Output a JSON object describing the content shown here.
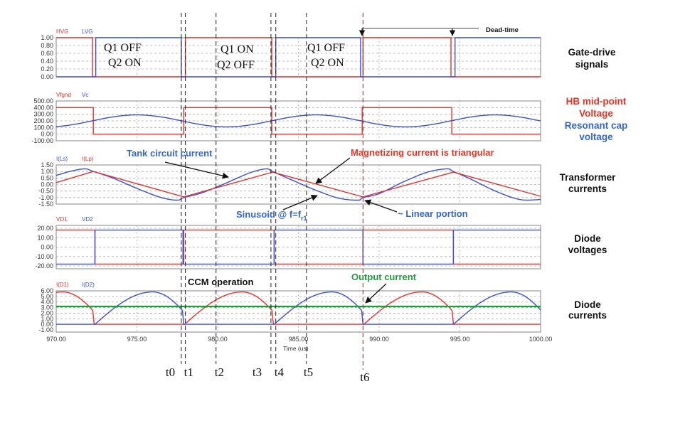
{
  "chart_data": {
    "type": "line",
    "title": "",
    "xlabel": "Time (us)",
    "xlim": [
      970,
      1000
    ],
    "xticks": [
      "970.00",
      "975.00",
      "980.00",
      "985.00",
      "990.00",
      "995.00",
      "1000.00"
    ],
    "grid": true,
    "colors": {
      "red": "#e8312a",
      "blue": "#3a4fd8",
      "green": "#1e9e3a",
      "annot_blue": "#3366dd",
      "annot_red": "#ee3322"
    },
    "panels": [
      {
        "id": "gate",
        "ylim": [
          0,
          1
        ],
        "yticks": [
          "1.00",
          "0.80",
          "0.60",
          "0.40",
          "0.20",
          "0.00"
        ],
        "side_label": [
          "Gate-drive",
          "signals"
        ],
        "series": [
          {
            "name": "HVG",
            "color": "red",
            "kind": "step",
            "high": 1,
            "low": 0,
            "high_intervals": [
              [
                970,
                972.25
              ],
              [
                978.0,
                983.35
              ],
              [
                989.0,
                994.45
              ]
            ]
          },
          {
            "name": "LVG",
            "color": "blue",
            "kind": "step",
            "high": 1,
            "low": 0,
            "high_intervals": [
              [
                972.45,
                977.75
              ],
              [
                983.6,
                988.85
              ],
              [
                994.7,
                1000
              ]
            ]
          }
        ]
      },
      {
        "id": "hb",
        "ylim": [
          -100,
          500
        ],
        "yticks": [
          "500.00",
          "400.00",
          "300.00",
          "200.00",
          "100.00",
          "0.00",
          "-100.00"
        ],
        "side_label_red": [
          "HB mid-point",
          "Voltage"
        ],
        "side_label_blue": [
          "Resonant cap",
          "voltage"
        ],
        "series": [
          {
            "name": "Vfgnd",
            "color": "red",
            "kind": "step",
            "high": 400,
            "low": 0,
            "high_intervals": [
              [
                970,
                972.3
              ],
              [
                977.9,
                983.35
              ],
              [
                988.95,
                994.5
              ]
            ]
          },
          {
            "name": "Vc",
            "color": "blue",
            "kind": "sinusoid",
            "offset": 200,
            "amplitude": 90,
            "period": 11.1,
            "peak_at": 975
          }
        ]
      },
      {
        "id": "currents",
        "ylim": [
          -1.5,
          1.5
        ],
        "yticks": [
          "1.50",
          "1.00",
          "0.50",
          "0.00",
          "-0.50",
          "-1.00",
          "-1.50"
        ],
        "side_label": [
          "Transformer",
          "currents"
        ],
        "series": [
          {
            "name": "I(Ls)",
            "color": "blue",
            "kind": "points",
            "smooth": true,
            "points": [
              [
                970,
                0.7
              ],
              [
                971,
                1.05
              ],
              [
                971.8,
                1.2
              ],
              [
                972.3,
                1.0
              ],
              [
                973.5,
                0.5
              ],
              [
                975,
                -0.3
              ],
              [
                976.5,
                -1.0
              ],
              [
                977.5,
                -1.2
              ],
              [
                977.9,
                -1.0
              ],
              [
                979,
                -0.65
              ],
              [
                980.5,
                0.1
              ],
              [
                982,
                0.9
              ],
              [
                983,
                1.2
              ],
              [
                983.4,
                1.0
              ],
              [
                984.5,
                0.4
              ],
              [
                986,
                -0.4
              ],
              [
                987.5,
                -1.05
              ],
              [
                988.7,
                -1.2
              ],
              [
                989.0,
                -1.0
              ],
              [
                990,
                -0.7
              ],
              [
                991.5,
                0.2
              ],
              [
                993,
                0.95
              ],
              [
                994.2,
                1.2
              ],
              [
                994.6,
                1.0
              ],
              [
                995.7,
                0.4
              ],
              [
                997.2,
                -0.5
              ],
              [
                998.7,
                -1.15
              ],
              [
                1000,
                -1.15
              ]
            ]
          },
          {
            "name": "I(Lp)",
            "color": "red",
            "kind": "points",
            "smooth": false,
            "points": [
              [
                970,
                0.15
              ],
              [
                972.3,
                1.0
              ],
              [
                977.9,
                -0.95
              ],
              [
                983.4,
                0.95
              ],
              [
                989.0,
                -0.95
              ],
              [
                994.6,
                0.95
              ],
              [
                1000,
                -0.9
              ]
            ]
          }
        ]
      },
      {
        "id": "diodev",
        "ylim": [
          -20,
          20
        ],
        "yticks": [
          "20.00",
          "10.00",
          "0.00",
          "-10.00",
          "-20.00"
        ],
        "side_label": [
          "Diode",
          "voltages"
        ],
        "series": [
          {
            "name": "VD1",
            "color": "red",
            "kind": "step",
            "high": 18,
            "low": -18,
            "high_intervals": [
              [
                970,
                972.4
              ],
              [
                977.9,
                983.5
              ],
              [
                989.0,
                994.6
              ]
            ]
          },
          {
            "name": "VD2",
            "color": "blue",
            "kind": "step",
            "high": 18,
            "low": -18,
            "high_intervals": [
              [
                972.4,
                977.85
              ],
              [
                983.5,
                989.0
              ],
              [
                994.6,
                1000
              ]
            ]
          }
        ]
      },
      {
        "id": "diodei",
        "ylim": [
          -1,
          6
        ],
        "yticks": [
          "6.00",
          "5.00",
          "4.00",
          "3.00",
          "2.00",
          "1.00",
          "0.00",
          "-1.00"
        ],
        "side_label": [
          "Diode",
          "currents"
        ],
        "series": [
          {
            "name": "I(D1)",
            "color": "red",
            "kind": "pulses",
            "peak": 5.8,
            "intervals": [
              [
                966.8,
                972.35
              ],
              [
                977.95,
                983.45
              ],
              [
                989.05,
                994.6
              ]
            ]
          },
          {
            "name": "I(D2)",
            "color": "blue",
            "kind": "pulses",
            "peak": 5.8,
            "intervals": [
              [
                972.4,
                977.9
              ],
              [
                983.5,
                989.0
              ],
              [
                994.6,
                1000.1
              ]
            ]
          },
          {
            "name": "Output current",
            "color": "green",
            "kind": "constant",
            "value": 3.2,
            "show_legend": false
          }
        ]
      }
    ],
    "markers": [
      {
        "label": "t0",
        "t": 977.75
      },
      {
        "label": "t1",
        "t": 978.0
      },
      {
        "label": "t2",
        "t": 979.9
      },
      {
        "label": "t3",
        "t": 983.3
      },
      {
        "label": "t4",
        "t": 983.6
      },
      {
        "label": "t5",
        "t": 985.5
      },
      {
        "label": "t6",
        "t": 989.0
      }
    ],
    "annotations": {
      "dead_time": "Dead-time",
      "tank": "Tank circuit current",
      "magnetizing": "Magnetizing current is triangular",
      "sinusoid_main": "Sinusoid @ f=f",
      "sinusoid_sub": "r1",
      "linear": "~ Linear portion",
      "ccm": "CCM operation",
      "output": "Output current",
      "states": [
        {
          "l1": "Q1  OFF",
          "l2": "Q2  ON"
        },
        {
          "l1": "Q1  ON",
          "l2": "Q2  OFF"
        },
        {
          "l1": "Q1  OFF",
          "l2": "Q2  ON"
        }
      ]
    }
  }
}
